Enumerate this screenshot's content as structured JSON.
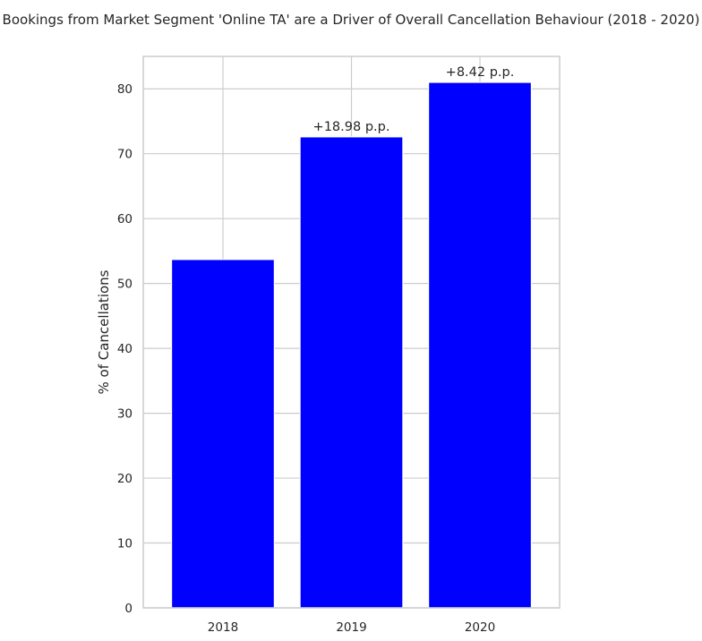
{
  "chart_data": {
    "type": "bar",
    "title": "Bookings from Market Segment 'Online TA' are a Driver of Overall Cancellation Behaviour (2018 - 2020)",
    "xlabel": "",
    "ylabel": "% of Cancellations",
    "categories": [
      "2018",
      "2019",
      "2020"
    ],
    "values": [
      53.7,
      72.6,
      81.0
    ],
    "annotations": [
      "",
      "+18.98 p.p.",
      "+8.42 p.p."
    ],
    "ylim": [
      0,
      85
    ],
    "yticks": [
      0,
      10,
      20,
      30,
      40,
      50,
      60,
      70,
      80
    ],
    "grid": true,
    "bar_color": "#0000ff"
  }
}
